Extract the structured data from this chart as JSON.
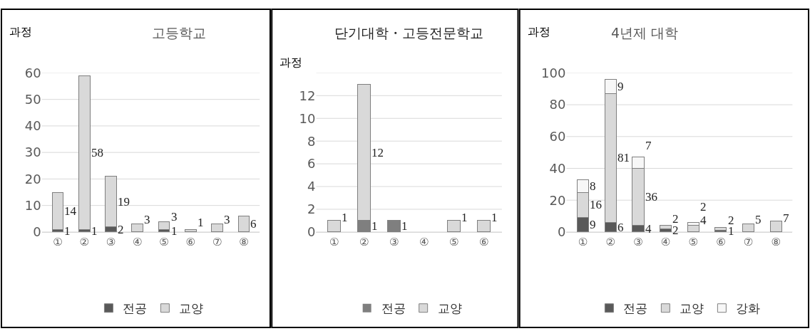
{
  "chart_data": [
    {
      "type": "bar",
      "title": "고등학교",
      "ylabel": "과정",
      "stacked": true,
      "grid": "y",
      "legend": "bottom",
      "categories": [
        "①",
        "②",
        "③",
        "④",
        "⑤",
        "⑥",
        "⑦",
        "⑧"
      ],
      "ylim": [
        0,
        60
      ],
      "yticks": [
        0,
        10,
        20,
        30,
        40,
        50,
        60
      ],
      "series": [
        {
          "name": "전공",
          "color": "#595959",
          "values": [
            1,
            1,
            2,
            0,
            1,
            0,
            0,
            0
          ],
          "value_labels": [
            "1",
            "1",
            "2",
            null,
            "1",
            null,
            null,
            null
          ]
        },
        {
          "name": "교양",
          "color": "#d9d9d9",
          "values": [
            14,
            58,
            19,
            3,
            3,
            1,
            3,
            6
          ],
          "value_labels": [
            "14",
            "58",
            "19",
            "3",
            "3",
            "1",
            "3",
            "6"
          ]
        }
      ]
    },
    {
      "type": "bar",
      "title": "단기대학・고등전문학교",
      "ylabel": "과정",
      "stacked": true,
      "grid": "y",
      "legend": "bottom",
      "categories": [
        "①",
        "②",
        "③",
        "④",
        "⑤",
        "⑥"
      ],
      "ylim": [
        0,
        14
      ],
      "yticks": [
        0,
        2,
        4,
        6,
        8,
        10,
        12,
        {
          "value": 14,
          "label": null
        }
      ],
      "series": [
        {
          "name": "전공",
          "color": "#7f7f7f",
          "values": [
            0,
            1,
            1,
            0,
            0,
            0
          ],
          "value_labels": [
            null,
            "1",
            "1",
            null,
            null,
            null
          ]
        },
        {
          "name": "교양",
          "color": "#d9d9d9",
          "values": [
            1,
            12,
            0,
            0,
            1,
            1
          ],
          "value_labels": [
            "1",
            "12",
            null,
            null,
            "1",
            "1"
          ]
        }
      ]
    },
    {
      "type": "bar",
      "title": "4년제 대학",
      "ylabel": "과정",
      "stacked": true,
      "grid": "y",
      "legend": "bottom",
      "categories": [
        "①",
        "②",
        "③",
        "④",
        "⑤",
        "⑥",
        "⑦",
        "⑧"
      ],
      "ylim": [
        0,
        100
      ],
      "yticks": [
        0,
        20,
        40,
        60,
        80,
        100
      ],
      "series": [
        {
          "name": "전공",
          "color": "#595959",
          "values": [
            9,
            6,
            4,
            2,
            0,
            1,
            0,
            0
          ],
          "value_labels": [
            "9",
            "6",
            "4",
            "2",
            null,
            "1",
            null,
            null
          ]
        },
        {
          "name": "교양",
          "color": "#d9d9d9",
          "values": [
            16,
            81,
            36,
            2,
            4,
            2,
            5,
            7
          ],
          "value_labels": [
            "16",
            "81",
            "36",
            "2",
            "4",
            "2",
            "5",
            "7"
          ]
        },
        {
          "name": "강화",
          "color": "#f7f7f7",
          "values": [
            8,
            9,
            7,
            0,
            2,
            0,
            0,
            0
          ],
          "value_labels": [
            "8",
            "9",
            "7",
            null,
            "2",
            null,
            null,
            null
          ]
        }
      ]
    }
  ]
}
